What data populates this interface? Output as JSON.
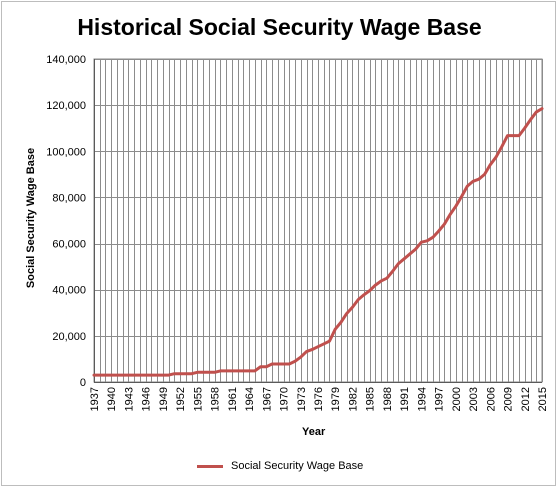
{
  "chart_data": {
    "type": "line",
    "title": "Historical Social Security Wage Base",
    "xlabel": "Year",
    "ylabel": "Social Security Wage Base",
    "xlim": [
      1937,
      2015
    ],
    "ylim": [
      0,
      140000
    ],
    "yticks": [
      0,
      20000,
      40000,
      60000,
      80000,
      100000,
      120000,
      140000
    ],
    "ytick_labels": [
      "0",
      "20,000",
      "40,000",
      "60,000",
      "80,000",
      "100,000",
      "120,000",
      "140,000"
    ],
    "xtick_labels": [
      "1937",
      "1940",
      "1943",
      "1946",
      "1949",
      "1952",
      "1955",
      "1958",
      "1961",
      "1964",
      "1967",
      "1970",
      "1973",
      "1976",
      "1979",
      "1982",
      "1985",
      "1988",
      "1991",
      "1994",
      "1997",
      "2000",
      "2003",
      "2006",
      "2009",
      "2012",
      "2015"
    ],
    "grid": true,
    "legend_position": "bottom",
    "series": [
      {
        "name": "Social Security Wage Base",
        "color": "#c0504d",
        "x": [
          1937,
          1938,
          1939,
          1940,
          1941,
          1942,
          1943,
          1944,
          1945,
          1946,
          1947,
          1948,
          1949,
          1950,
          1951,
          1952,
          1953,
          1954,
          1955,
          1956,
          1957,
          1958,
          1959,
          1960,
          1961,
          1962,
          1963,
          1964,
          1965,
          1966,
          1967,
          1968,
          1969,
          1970,
          1971,
          1972,
          1973,
          1974,
          1975,
          1976,
          1977,
          1978,
          1979,
          1980,
          1981,
          1982,
          1983,
          1984,
          1985,
          1986,
          1987,
          1988,
          1989,
          1990,
          1991,
          1992,
          1993,
          1994,
          1995,
          1996,
          1997,
          1998,
          1999,
          2000,
          2001,
          2002,
          2003,
          2004,
          2005,
          2006,
          2007,
          2008,
          2009,
          2010,
          2011,
          2012,
          2013,
          2014,
          2015
        ],
        "y": [
          3000,
          3000,
          3000,
          3000,
          3000,
          3000,
          3000,
          3000,
          3000,
          3000,
          3000,
          3000,
          3000,
          3000,
          3600,
          3600,
          3600,
          3600,
          4200,
          4200,
          4200,
          4200,
          4800,
          4800,
          4800,
          4800,
          4800,
          4800,
          4800,
          6600,
          6600,
          7800,
          7800,
          7800,
          7800,
          9000,
          10800,
          13200,
          14100,
          15300,
          16500,
          17700,
          22900,
          25900,
          29700,
          32400,
          35700,
          37800,
          39600,
          42000,
          43800,
          45000,
          48000,
          51300,
          53400,
          55500,
          57600,
          60600,
          61200,
          62700,
          65400,
          68400,
          72600,
          76200,
          80400,
          84900,
          87000,
          87900,
          90000,
          94200,
          97500,
          102000,
          106800,
          106800,
          106800,
          110100,
          113700,
          117000,
          118500
        ]
      }
    ]
  }
}
